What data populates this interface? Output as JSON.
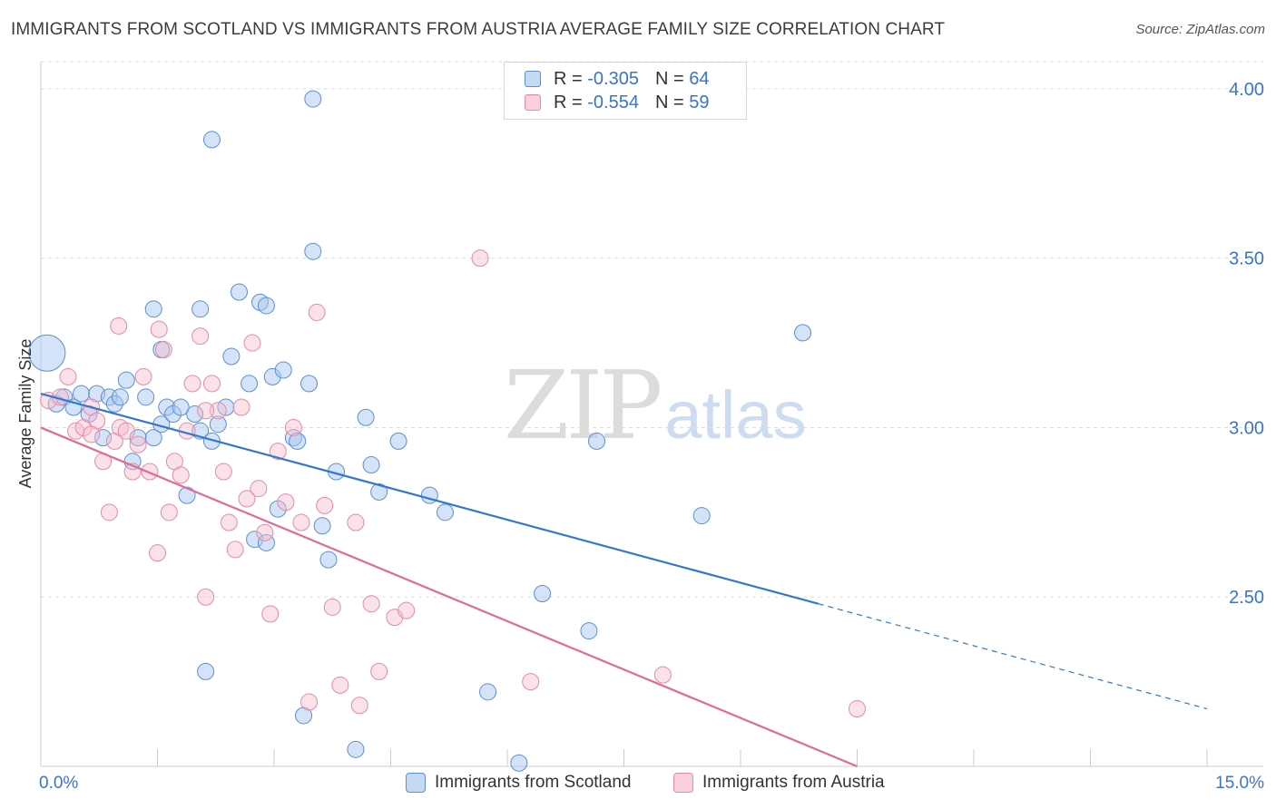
{
  "title": "IMMIGRANTS FROM SCOTLAND VS IMMIGRANTS FROM AUSTRIA AVERAGE FAMILY SIZE CORRELATION CHART",
  "source": "Source: ZipAtlas.com",
  "watermark": {
    "zip": "ZIP",
    "atlas": "atlas"
  },
  "legend_top": {
    "scotland": {
      "r_label": "R = ",
      "r_value": "-0.305",
      "n_label": "N = ",
      "n_value": "64"
    },
    "austria": {
      "r_label": "R = ",
      "r_value": "-0.554",
      "n_label": "N = ",
      "n_value": "59"
    }
  },
  "colors": {
    "scotland_fill": "#a9c8f0",
    "scotland_stroke": "#5b8fd6",
    "scotland_line": "#3377d1",
    "austria_fill": "#f6bccd",
    "austria_stroke": "#e889a8",
    "austria_line": "#e06a95",
    "grid": "#dddddd",
    "axis_text": "#3a74cc"
  },
  "chart_data": {
    "type": "scatter",
    "title": "IMMIGRANTS FROM SCOTLAND VS IMMIGRANTS FROM AUSTRIA AVERAGE FAMILY SIZE CORRELATION CHART",
    "xlabel": "",
    "ylabel": "Average Family Size",
    "xlim": [
      0,
      15
    ],
    "ylim": [
      2.0,
      4.08
    ],
    "x_tick_labels": [
      "0.0%",
      "15.0%"
    ],
    "x_tick_values": [
      0,
      15
    ],
    "y_tick_labels": [
      "2.50",
      "3.00",
      "3.50",
      "4.00"
    ],
    "y_tick_values": [
      2.5,
      3.0,
      3.5,
      4.0
    ],
    "grid": "horizontal dashed",
    "legend_position": "top-center",
    "series": [
      {
        "name": "Immigrants from Scotland",
        "color": "#a9c8f0",
        "trend": {
          "x0": 0,
          "y0": 3.1,
          "x_solid_end": 10.0,
          "x1": 15.0,
          "y1": 2.17
        },
        "points": [
          [
            0.08,
            3.22
          ],
          [
            0.2,
            3.07
          ],
          [
            0.3,
            3.09
          ],
          [
            0.42,
            3.06
          ],
          [
            0.52,
            3.1
          ],
          [
            0.62,
            3.04
          ],
          [
            0.72,
            3.1
          ],
          [
            0.8,
            2.97
          ],
          [
            0.88,
            3.09
          ],
          [
            0.95,
            3.07
          ],
          [
            1.02,
            3.09
          ],
          [
            1.1,
            3.14
          ],
          [
            1.18,
            2.9
          ],
          [
            1.25,
            2.97
          ],
          [
            1.35,
            3.09
          ],
          [
            1.45,
            2.97
          ],
          [
            1.55,
            3.01
          ],
          [
            1.62,
            3.06
          ],
          [
            1.7,
            3.04
          ],
          [
            1.8,
            3.06
          ],
          [
            1.88,
            2.8
          ],
          [
            1.98,
            3.04
          ],
          [
            2.05,
            2.99
          ],
          [
            2.12,
            2.28
          ],
          [
            2.2,
            2.96
          ],
          [
            2.28,
            3.01
          ],
          [
            2.38,
            3.06
          ],
          [
            2.45,
            3.21
          ],
          [
            2.55,
            3.4
          ],
          [
            2.68,
            3.13
          ],
          [
            2.75,
            2.67
          ],
          [
            2.82,
            3.37
          ],
          [
            2.9,
            2.66
          ],
          [
            2.98,
            3.15
          ],
          [
            3.05,
            2.76
          ],
          [
            3.12,
            3.17
          ],
          [
            3.25,
            2.97
          ],
          [
            3.3,
            2.96
          ],
          [
            3.38,
            2.15
          ],
          [
            3.45,
            3.13
          ],
          [
            3.5,
            3.52
          ],
          [
            3.62,
            2.71
          ],
          [
            3.7,
            2.61
          ],
          [
            3.8,
            2.87
          ],
          [
            4.05,
            2.05
          ],
          [
            4.18,
            3.03
          ],
          [
            4.25,
            2.89
          ],
          [
            4.35,
            2.81
          ],
          [
            4.6,
            2.96
          ],
          [
            5.0,
            2.8
          ],
          [
            5.2,
            2.75
          ],
          [
            5.75,
            2.22
          ],
          [
            6.15,
            2.01
          ],
          [
            6.45,
            2.51
          ],
          [
            7.05,
            2.4
          ],
          [
            7.15,
            2.96
          ],
          [
            8.5,
            2.74
          ],
          [
            9.8,
            3.28
          ],
          [
            3.5,
            3.97
          ],
          [
            2.2,
            3.85
          ],
          [
            1.45,
            3.35
          ],
          [
            2.05,
            3.35
          ],
          [
            2.9,
            3.36
          ],
          [
            1.55,
            3.23
          ]
        ]
      },
      {
        "name": "Immigrants from Austria",
        "color": "#f6bccd",
        "trend": {
          "x0": 0,
          "y0": 3.0,
          "x1": 10.5,
          "y1": 2.0
        },
        "points": [
          [
            0.1,
            3.08
          ],
          [
            0.25,
            3.09
          ],
          [
            0.35,
            3.15
          ],
          [
            0.45,
            2.99
          ],
          [
            0.55,
            3.0
          ],
          [
            0.65,
            3.06
          ],
          [
            0.72,
            3.02
          ],
          [
            0.8,
            2.9
          ],
          [
            0.88,
            2.75
          ],
          [
            0.95,
            2.96
          ],
          [
            1.02,
            3.0
          ],
          [
            1.1,
            2.99
          ],
          [
            1.18,
            2.87
          ],
          [
            1.25,
            2.95
          ],
          [
            1.32,
            3.15
          ],
          [
            1.4,
            2.87
          ],
          [
            1.5,
            2.63
          ],
          [
            1.58,
            3.23
          ],
          [
            1.65,
            2.75
          ],
          [
            1.72,
            2.9
          ],
          [
            1.8,
            2.86
          ],
          [
            1.88,
            2.99
          ],
          [
            1.95,
            3.13
          ],
          [
            2.05,
            3.27
          ],
          [
            2.12,
            2.5
          ],
          [
            2.2,
            3.13
          ],
          [
            2.28,
            3.05
          ],
          [
            2.35,
            2.87
          ],
          [
            2.42,
            2.72
          ],
          [
            2.5,
            2.64
          ],
          [
            2.58,
            3.06
          ],
          [
            2.65,
            2.79
          ],
          [
            2.72,
            3.25
          ],
          [
            2.8,
            2.82
          ],
          [
            2.88,
            2.69
          ],
          [
            2.95,
            2.45
          ],
          [
            3.05,
            2.93
          ],
          [
            3.15,
            2.78
          ],
          [
            3.25,
            3.0
          ],
          [
            3.35,
            2.72
          ],
          [
            3.45,
            2.19
          ],
          [
            3.55,
            3.34
          ],
          [
            3.65,
            2.77
          ],
          [
            3.75,
            2.47
          ],
          [
            3.85,
            2.24
          ],
          [
            4.05,
            2.72
          ],
          [
            4.1,
            2.18
          ],
          [
            4.25,
            2.48
          ],
          [
            4.35,
            2.28
          ],
          [
            4.55,
            2.44
          ],
          [
            4.7,
            2.46
          ],
          [
            5.65,
            3.5
          ],
          [
            6.3,
            2.25
          ],
          [
            8.0,
            2.27
          ],
          [
            10.5,
            2.17
          ],
          [
            1.52,
            3.29
          ],
          [
            2.12,
            3.05
          ],
          [
            0.65,
            2.98
          ],
          [
            1.0,
            3.3
          ]
        ]
      }
    ]
  },
  "bottom_legend": {
    "scotland": "Immigrants from Scotland",
    "austria": "Immigrants from Austria"
  }
}
